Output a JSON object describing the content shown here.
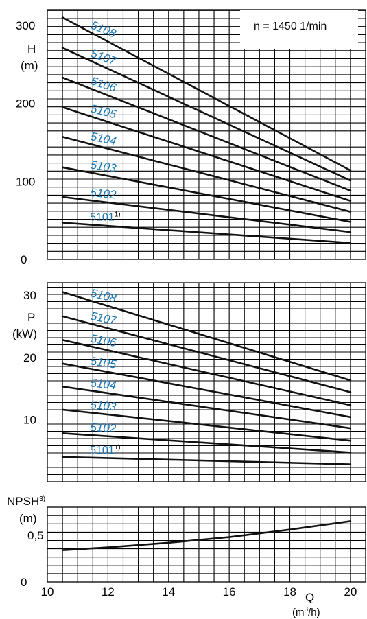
{
  "chart_data": [
    {
      "type": "line",
      "id": "head",
      "ylabel": "H",
      "yunit": "(m)",
      "ylim": [
        0,
        320
      ],
      "yticks": [
        "0",
        "100",
        "200",
        "300"
      ],
      "xlim": [
        10,
        20.5
      ],
      "annotation": "n = 1450 1/min",
      "grid": true,
      "series": [
        {
          "name": "5108",
          "x": [
            10.5,
            20
          ],
          "y": [
            310,
            114
          ]
        },
        {
          "name": "5107",
          "x": [
            10.5,
            20
          ],
          "y": [
            271,
            101
          ]
        },
        {
          "name": "5106",
          "x": [
            10.5,
            20
          ],
          "y": [
            233,
            88
          ]
        },
        {
          "name": "5105",
          "x": [
            10.5,
            20
          ],
          "y": [
            195,
            75
          ]
        },
        {
          "name": "5104",
          "x": [
            10.5,
            20
          ],
          "y": [
            157,
            61
          ]
        },
        {
          "name": "5103",
          "x": [
            10.5,
            20
          ],
          "y": [
            118,
            48
          ]
        },
        {
          "name": "5102",
          "x": [
            10.5,
            20
          ],
          "y": [
            80,
            35
          ]
        },
        {
          "name": "5101",
          "name_sup": "1)",
          "x": [
            10.5,
            20
          ],
          "y": [
            47,
            21
          ]
        }
      ]
    },
    {
      "type": "line",
      "id": "power",
      "ylabel": "P",
      "yunit": "(kW)",
      "ylim": [
        0,
        32
      ],
      "yticks": [
        "10",
        "20",
        "30"
      ],
      "xlim": [
        10,
        20.5
      ],
      "grid": true,
      "series": [
        {
          "name": "5108",
          "x": [
            10.5,
            20
          ],
          "y": [
            30.5,
            16.3
          ]
        },
        {
          "name": "5107",
          "x": [
            10.5,
            20
          ],
          "y": [
            26.6,
            14.4
          ]
        },
        {
          "name": "5106",
          "x": [
            10.5,
            20
          ],
          "y": [
            22.8,
            12.3
          ]
        },
        {
          "name": "5105",
          "x": [
            10.5,
            20
          ],
          "y": [
            19.0,
            10.4
          ]
        },
        {
          "name": "5104",
          "x": [
            10.5,
            20
          ],
          "y": [
            15.3,
            8.6
          ]
        },
        {
          "name": "5103",
          "x": [
            10.5,
            20
          ],
          "y": [
            11.6,
            6.6
          ]
        },
        {
          "name": "5102",
          "x": [
            10.5,
            20
          ],
          "y": [
            7.8,
            4.7
          ]
        },
        {
          "name": "5101",
          "name_sup": "1)",
          "x": [
            10.5,
            20
          ],
          "y": [
            4.0,
            2.8
          ]
        }
      ]
    },
    {
      "type": "line",
      "id": "npsh",
      "ylabel": "NPSH",
      "ylabel_sup": "3)",
      "yunit": "(m)",
      "ylim": [
        0,
        0.8
      ],
      "yticks": [
        "0",
        "0,5"
      ],
      "xlim": [
        10,
        20.5
      ],
      "xticks": [
        "10",
        "12",
        "14",
        "16",
        "18",
        "20"
      ],
      "xlabel": "Q",
      "xunit": "(m",
      "xunit_sup": "3",
      "xunit_tail": "/h)",
      "grid": true,
      "series": [
        {
          "name": "",
          "x": [
            10.5,
            12,
            14,
            16,
            18,
            20
          ],
          "y": [
            0.34,
            0.37,
            0.42,
            0.48,
            0.56,
            0.65
          ]
        }
      ]
    }
  ]
}
